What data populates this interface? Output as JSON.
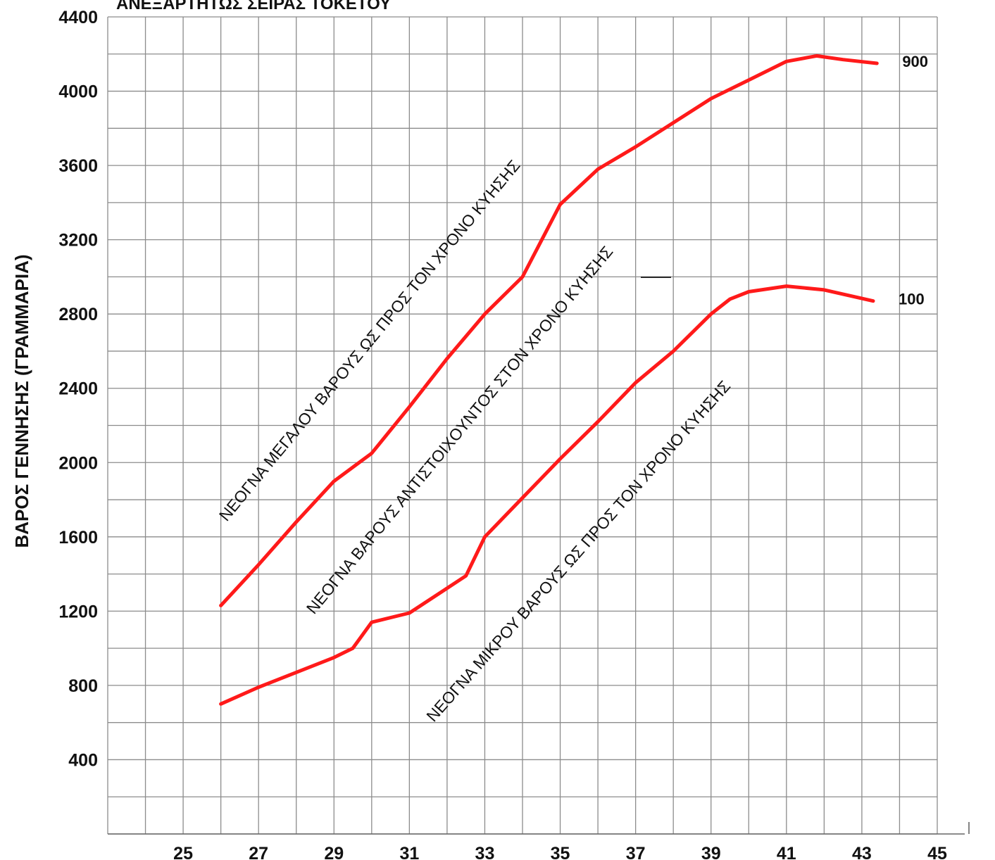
{
  "chart_data": {
    "type": "line",
    "title": "ΑΝΕΞΑΡΤΗΤΩΣ ΣΕΙΡΑΣ ΤΟΚΕΤΟΥ",
    "xlabel": "",
    "ylabel": "ΒΑΡΟΣ ΓΕΝΝΗΣΗΣ (ΓΡΑΜΜΑΡΙΑ)",
    "xlim": [
      23,
      45
    ],
    "ylim": [
      0,
      4400
    ],
    "x_ticks": [
      "25",
      "27",
      "29",
      "31",
      "33",
      "35",
      "37",
      "39",
      "41",
      "43",
      "45"
    ],
    "y_ticks": [
      "400",
      "800",
      "1200",
      "1600",
      "2000",
      "2400",
      "2800",
      "3200",
      "3600",
      "4000",
      "4400"
    ],
    "grid": true,
    "line_color": "#ff1a1a",
    "series": [
      {
        "name": "900",
        "x": [
          26,
          27,
          28,
          29,
          30,
          31,
          32,
          33,
          34,
          35,
          36,
          37,
          38,
          39,
          40,
          41,
          41.8,
          42.5,
          43.4
        ],
        "y": [
          1230,
          1450,
          1680,
          1900,
          2050,
          2300,
          2560,
          2800,
          3000,
          3390,
          3580,
          3700,
          3830,
          3960,
          4060,
          4160,
          4190,
          4170,
          4150
        ]
      },
      {
        "name": "100",
        "x": [
          26,
          27,
          28,
          29,
          29.5,
          30,
          31,
          32.5,
          33,
          34,
          35,
          36,
          37,
          38,
          39,
          39.5,
          40,
          41,
          42,
          43.3
        ],
        "y": [
          700,
          790,
          870,
          950,
          1000,
          1140,
          1190,
          1390,
          1600,
          1810,
          2020,
          2220,
          2430,
          2600,
          2800,
          2880,
          2920,
          2950,
          2930,
          2870
        ]
      }
    ],
    "annotations": [
      "ΝΕΟΓΝΑ ΜΕΓΑΛΟΥ ΒΑΡΟΥΣ ΩΣ ΠΡΟΣ ΤΟΝ ΧΡΟΝΟ ΚΥΗΣΗΣ",
      "ΝΕΟΓΝΑ ΒΑΡΟΥΣ ΑΝΤΙΣΤΟΙΧΟΥΝΤΟΣ ΣΤΟΝ ΧΡΟΝΟ ΚΥΗΣΗΣ",
      "ΝΕΟΓΝΑ ΜΙΚΡΟΥ ΒΑΡΟΥΣ ΩΣ ΠΡΟΣ ΤΟΝ ΧΡΟΝΟ ΚΥΗΣΗΣ"
    ]
  }
}
